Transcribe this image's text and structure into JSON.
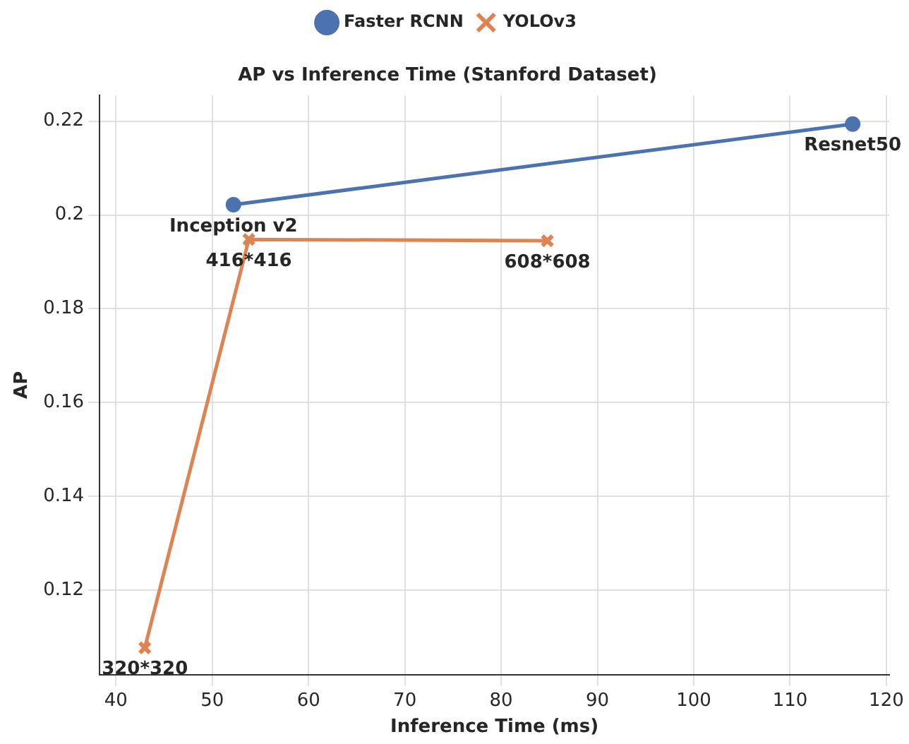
{
  "chart_data": {
    "type": "line",
    "title": "AP vs Inference Time (Stanford Dataset)",
    "xlabel": "Inference Time (ms)",
    "ylabel": "AP",
    "series": [
      {
        "name": "Faster RCNN",
        "color": "#4c72b0",
        "marker": "circle",
        "x": [
          52.2,
          116.5
        ],
        "values": [
          0.2022,
          0.2194
        ]
      },
      {
        "name": "YOLOv3",
        "color": "#dd8452",
        "marker": "cross",
        "x": [
          43.0,
          53.8,
          84.8
        ],
        "values": [
          0.1077,
          0.1948,
          0.1945
        ]
      }
    ],
    "annotations": [
      {
        "text": "Inception v2",
        "x": 52.2,
        "y": 0.2022
      },
      {
        "text": "Resnet50",
        "x": 116.5,
        "y": 0.2194
      },
      {
        "text": "320*320",
        "x": 43.0,
        "y": 0.1077
      },
      {
        "text": "416*416",
        "x": 53.8,
        "y": 0.1948
      },
      {
        "text": "608*608",
        "x": 84.8,
        "y": 0.1945
      }
    ],
    "xlim": [
      38.3,
      120.3
    ],
    "xticks": [
      40,
      50,
      60,
      70,
      80,
      90,
      100,
      110,
      120
    ],
    "ylim": [
      0.102,
      0.2255
    ],
    "yticks": [
      0.12,
      0.14,
      0.16,
      0.18,
      0.2,
      0.22
    ],
    "grid": true,
    "legend": "top",
    "line_style": "solid"
  }
}
